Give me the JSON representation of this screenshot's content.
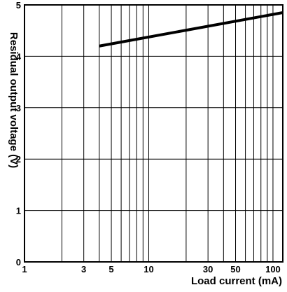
{
  "chart_data": {
    "type": "line",
    "xlabel": "Load current (mA)",
    "ylabel": "Residual output voltage (V)",
    "xscale": "log",
    "xlim": [
      1,
      120
    ],
    "ylim": [
      0,
      5
    ],
    "x_ticks": [
      1,
      3,
      5,
      10,
      30,
      50,
      100
    ],
    "x_tick_labels": [
      "1",
      "3",
      "5",
      "10",
      "30",
      "50",
      "100"
    ],
    "x_minor_gridlines": [
      2,
      4,
      6,
      7,
      8,
      9,
      20,
      40,
      60,
      70,
      80,
      90
    ],
    "y_ticks": [
      0,
      1,
      2,
      3,
      4,
      5
    ],
    "y_tick_labels": [
      "0",
      "1",
      "2",
      "3",
      "4",
      "5"
    ],
    "grid": true,
    "series": [
      {
        "x": [
          4,
          120
        ],
        "y": [
          4.2,
          4.85
        ]
      }
    ]
  },
  "colors": {
    "background": "#ffffff",
    "grid": "#000000",
    "line": "#000000"
  }
}
